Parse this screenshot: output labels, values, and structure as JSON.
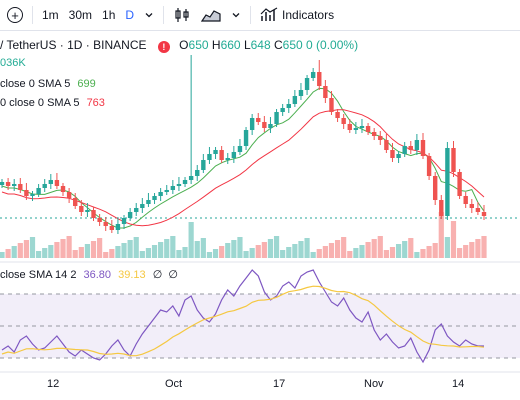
{
  "toolbar": {
    "intervals": [
      "1m",
      "30m",
      "1h",
      "D"
    ],
    "active_interval": "D",
    "indicators_label": "Indicators"
  },
  "symbol": {
    "name": "/ TetherUS · 1D · BINANCE",
    "alert_glyph": "!",
    "ohlc": {
      "o_label": "O",
      "o_value": "650",
      "h_label": "H",
      "h_value": "660",
      "l_label": "L",
      "l_value": "648",
      "c_label": "C",
      "c_value": "650",
      "change": "0 (0.00%)"
    }
  },
  "legends": {
    "volume": "036K",
    "sma1_label": "close 0 SMA 5",
    "sma1_value": "699",
    "sma2_label": "0 close 0 SMA 5",
    "sma2_value": "763",
    "rsi_label": "close SMA 14 2",
    "rsi_value1": "36.80",
    "rsi_value2": "39.13",
    "rsi_extra1": "∅",
    "rsi_extra2": "∅"
  },
  "colors": {
    "up": "#26a69a",
    "down": "#ef5350",
    "sma_fast": "#4caf50",
    "sma_slow": "#f23645",
    "rsi_line": "#7e57c2",
    "rsi_ma": "#f5c842",
    "rsi_band": "#7e57c2"
  },
  "xaxis_labels": [
    "12",
    "Oct",
    "17",
    "Nov",
    "14"
  ]
}
